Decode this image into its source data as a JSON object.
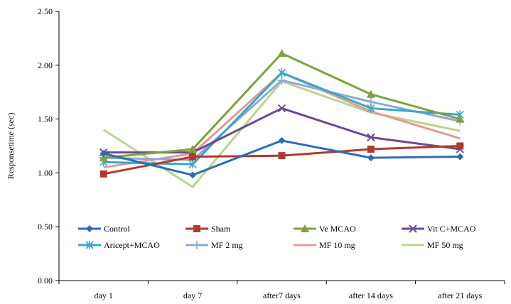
{
  "chart_data": {
    "type": "line",
    "title": "",
    "xlabel": "",
    "ylabel": "Responsetime (sec)",
    "ylim": [
      0,
      2.5
    ],
    "yticks": [
      "0.00",
      "0.50",
      "1.00",
      "1.50",
      "2.00",
      "2.50"
    ],
    "categories": [
      "day 1",
      "day 7",
      "after7 days",
      "after 14 days",
      "after 21 days"
    ],
    "grid": false,
    "legend_position": "bottom-inside",
    "series": [
      {
        "name": "Control",
        "color": "#2E6DB4",
        "marker": "diamond",
        "values": [
          1.18,
          0.98,
          1.3,
          1.14,
          1.15
        ]
      },
      {
        "name": "Sham",
        "color": "#B03A2E",
        "marker": "square",
        "values": [
          0.99,
          1.15,
          1.16,
          1.22,
          1.25
        ]
      },
      {
        "name": "Ve MCAO",
        "color": "#7FA23A",
        "marker": "triangle",
        "values": [
          1.14,
          1.22,
          2.11,
          1.73,
          1.5
        ]
      },
      {
        "name": "Vit C+MCAO",
        "color": "#6B4A8E",
        "marker": "x",
        "values": [
          1.19,
          1.19,
          1.6,
          1.33,
          1.22
        ]
      },
      {
        "name": "Aricept+MCAO",
        "color": "#3AA7C4",
        "marker": "asterisk",
        "values": [
          1.1,
          1.08,
          1.93,
          1.6,
          1.54
        ]
      },
      {
        "name": "MF 2 mg",
        "color": "#8FA8D8",
        "marker": "plus",
        "values": [
          1.14,
          1.12,
          1.86,
          1.66,
          1.48
        ]
      },
      {
        "name": "MF 10 mg",
        "color": "#E39A96",
        "marker": "none",
        "values": [
          1.05,
          1.18,
          1.93,
          1.57,
          1.32
        ]
      },
      {
        "name": "MF 50 mg",
        "color": "#B9D78B",
        "marker": "none",
        "values": [
          1.4,
          0.87,
          1.85,
          1.56,
          1.39
        ]
      }
    ]
  }
}
